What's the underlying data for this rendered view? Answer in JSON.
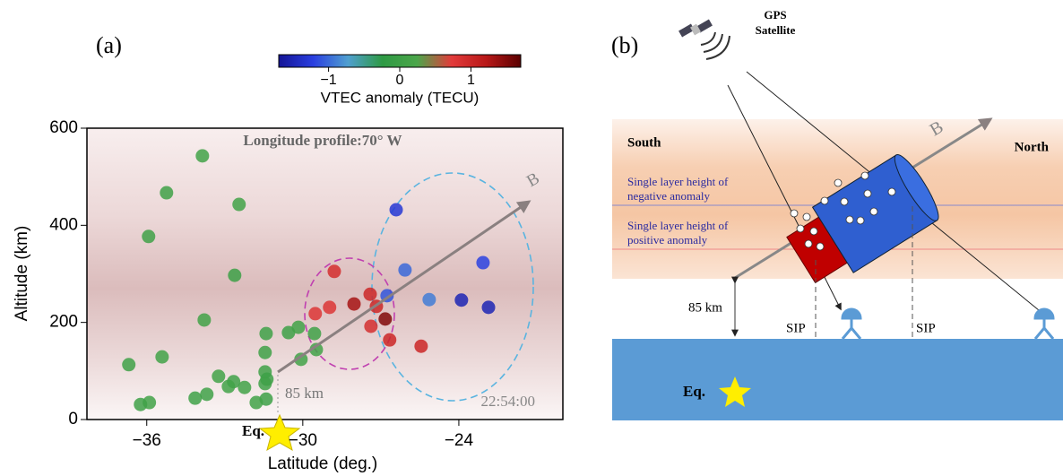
{
  "chart_data": [
    {
      "type": "scatter",
      "panel": "(a)",
      "title": "Longitude profile:70° W",
      "xlabel": "Latitude (deg.)",
      "ylabel": "Altitude (km)",
      "xlim": [
        -38.3,
        -20
      ],
      "ylim": [
        0,
        600
      ],
      "xticks": [
        {
          "value": -36,
          "label": "−36"
        },
        {
          "value": -30,
          "label": "−30"
        },
        {
          "value": -24,
          "label": "−24"
        }
      ],
      "yticks": [
        0,
        200,
        400,
        600
      ],
      "x": [
        -33.86,
        -35.24,
        -32.45,
        -35.93,
        -32.62,
        -33.79,
        -36.69,
        -35.41,
        -31.41,
        -30.55,
        -30.17,
        -29.55,
        -29.48,
        -31.45,
        -30.07,
        -31.45,
        -31.38,
        -33.24,
        -32.66,
        -32.24,
        -33.69,
        -32.86,
        -34.14,
        -35.9,
        -36.24,
        -31.41,
        -31.79,
        -31.45,
        -28.79,
        -28.97,
        -29.52,
        -28.03,
        -27.41,
        -27.38,
        -26.83,
        -26.66,
        -25.45,
        -27.17,
        -26.41,
        -26.07,
        -26.76,
        -25.14,
        -23.9,
        -23.07,
        -22.86
      ],
      "y": [
        543,
        467,
        443,
        377,
        297,
        205,
        113,
        129,
        177,
        179,
        190,
        177,
        144,
        138,
        124,
        98,
        83,
        89,
        78,
        66,
        52,
        68,
        44,
        35,
        31,
        42,
        35,
        74,
        305,
        231,
        218,
        238,
        258,
        192,
        207,
        164,
        151,
        233,
        432,
        308,
        255,
        247,
        246,
        323,
        231
      ],
      "color_values": [
        0.1,
        0.05,
        0.1,
        0.05,
        0,
        0.1,
        0.05,
        0.1,
        0.05,
        0,
        0.1,
        0.05,
        0.1,
        0.05,
        0.1,
        0.05,
        0,
        0.1,
        0.05,
        0.1,
        0.05,
        0.1,
        0.05,
        0.1,
        0.05,
        0,
        0.1,
        0.05,
        0.9,
        0.8,
        0.8,
        1.3,
        1.0,
        0.9,
        1.5,
        1.0,
        1.0,
        1.0,
        -1.3,
        -1.0,
        -1.1,
        -0.9,
        -1.5,
        -1.2,
        -1.5
      ],
      "colorbar": {
        "label": "VTEC anomaly (TECU)",
        "clim": [
          -1.7,
          1.7
        ],
        "ticks": [
          {
            "value": -1,
            "label": "−1"
          },
          0,
          1
        ],
        "colormap": [
          "#141496",
          "#2a3fe0",
          "#4f9fd0",
          "#2e9a44",
          "#4ba64a",
          "#e23b3b",
          "#b81818",
          "#5a0000"
        ]
      },
      "annotations": {
        "field": "B",
        "height": "85 km",
        "time": "22:54:00",
        "equator": "Eq."
      }
    }
  ],
  "diagram": {
    "panel": "(b)",
    "satellite": [
      "GPS",
      "Satellite"
    ],
    "south": "South",
    "north": "North",
    "field": "B",
    "negative_layer": [
      "Single layer height of",
      "negative anomaly"
    ],
    "positive_layer": [
      "Single layer height of",
      "positive anomaly"
    ],
    "height": "85 km",
    "sip_left": "SIP",
    "sip_right": "SIP",
    "equator": "Eq."
  }
}
